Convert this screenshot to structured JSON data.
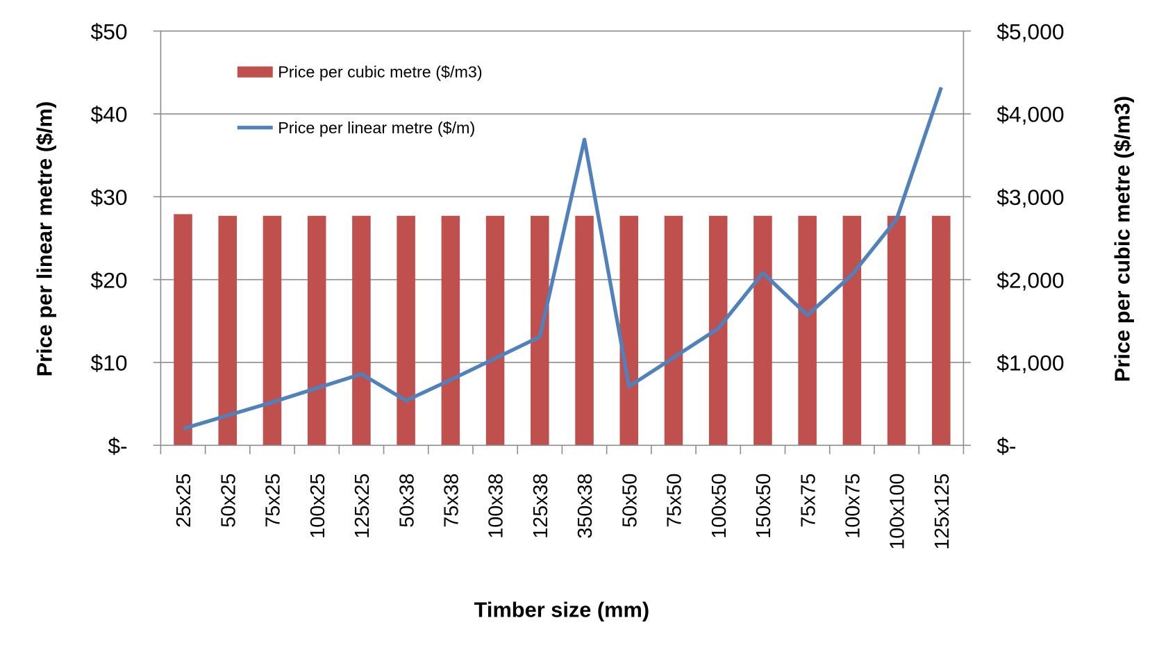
{
  "chart_data": {
    "type": "bar+line",
    "xlabel": "Timber size (mm)",
    "ylabel_left": "Price per linear metre ($/m)",
    "ylabel_right": "Price per cubic metre ($/m3)",
    "categories": [
      "25x25",
      "50x25",
      "75x25",
      "100x25",
      "125x25",
      "50x38",
      "75x38",
      "100x38",
      "125x38",
      "350x38",
      "50x50",
      "75x50",
      "100x50",
      "150x50",
      "75x75",
      "100x75",
      "100x100",
      "125x125"
    ],
    "series": [
      {
        "name": "Price per cubic metre ($/m3)",
        "type": "bar",
        "axis": "right",
        "color": "#c0504d",
        "values": [
          2790,
          2770,
          2770,
          2770,
          2770,
          2770,
          2770,
          2770,
          2770,
          2770,
          2770,
          2770,
          2770,
          2770,
          2770,
          2770,
          2770,
          2770
        ]
      },
      {
        "name": "Price per linear metre ($/m)",
        "type": "line",
        "axis": "left",
        "color": "#4f81bd",
        "values": [
          2.0,
          3.6,
          5.2,
          6.9,
          8.6,
          5.4,
          7.9,
          10.5,
          13.1,
          36.9,
          7.1,
          10.6,
          14.1,
          20.8,
          15.7,
          20.6,
          27.3,
          43.2
        ]
      }
    ],
    "ylim_left": [
      0,
      50
    ],
    "ylim_right": [
      0,
      5000
    ],
    "yticks_left": [
      "$-",
      "$10",
      "$20",
      "$30",
      "$40",
      "$50"
    ],
    "yticks_right": [
      "$-",
      "$1,000",
      "$2,000",
      "$3,000",
      "$4,000",
      "$5,000"
    ],
    "grid": true,
    "legend": "top-left"
  }
}
